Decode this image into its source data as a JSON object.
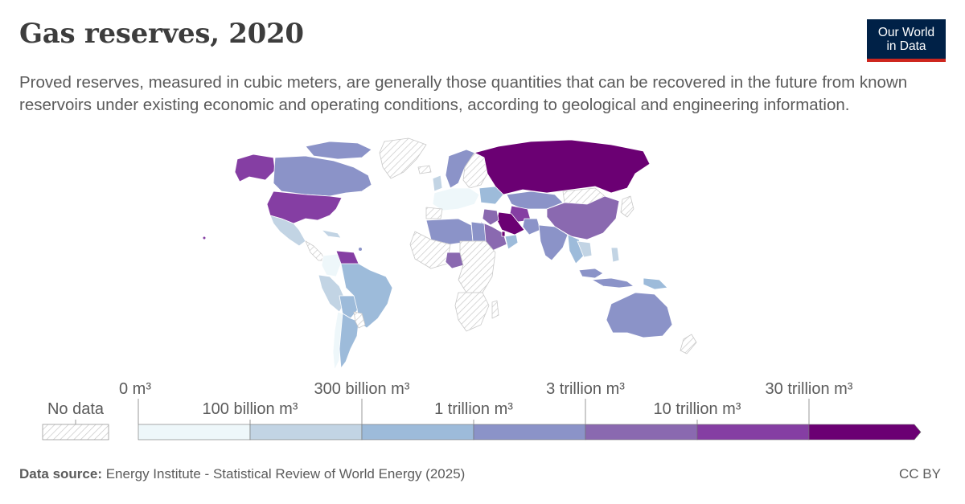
{
  "header": {
    "title": "Gas reserves, 2020",
    "subtitle": "Proved reserves, measured in cubic meters, are generally those quantities that can be recovered in the future from known reservoirs under existing economic and operating conditions, according to geological and engineering information."
  },
  "logo": {
    "line1": "Our World",
    "line2": "in Data"
  },
  "legend": {
    "no_data_label": "No data",
    "upper_labels": [
      "0 m³",
      "300 billion m³",
      "3 trillion m³",
      "30 trillion m³"
    ],
    "lower_labels": [
      "100 billion m³",
      "1 trillion m³",
      "10 trillion m³"
    ],
    "colors": [
      "#eef7fa",
      "#c2d4e4",
      "#9dbbda",
      "#8b93c8",
      "#8a69b0",
      "#853ea3",
      "#6b0073"
    ],
    "no_data_color": "#d0d0d0"
  },
  "footer": {
    "source_label": "Data source:",
    "source_text": "Energy Institute - Statistical Review of World Energy (2025)",
    "license": "CC BY"
  }
}
